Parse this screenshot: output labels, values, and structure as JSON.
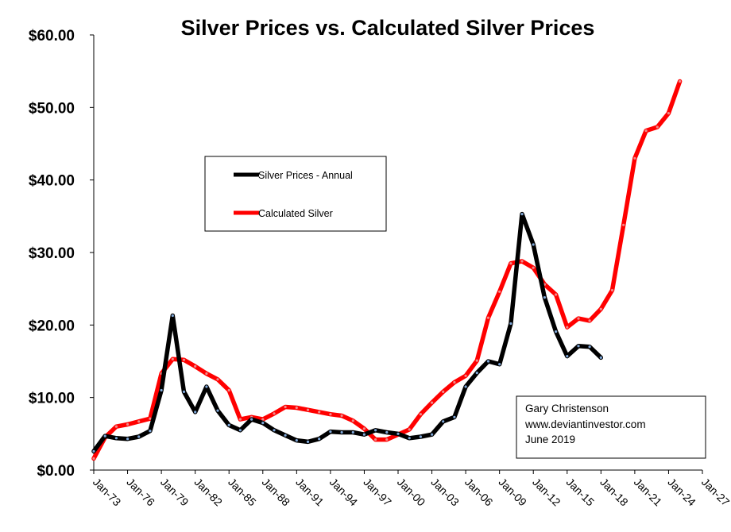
{
  "chart_data": {
    "type": "line",
    "title": "Silver Prices vs. Calculated Silver Prices",
    "xlabel": "",
    "ylabel": "",
    "ylim": [
      0,
      60
    ],
    "yticks": [
      "$0.00",
      "$10.00",
      "$20.00",
      "$30.00",
      "$40.00",
      "$50.00",
      "$60.00"
    ],
    "xlim": [
      1973,
      2027
    ],
    "xticks": [
      "Jan-73",
      "Jan-76",
      "Jan-79",
      "Jan-82",
      "Jan-85",
      "Jan-88",
      "Jan-91",
      "Jan-94",
      "Jan-97",
      "Jan-00",
      "Jan-03",
      "Jan-06",
      "Jan-09",
      "Jan-12",
      "Jan-15",
      "Jan-18",
      "Jan-21",
      "Jan-24",
      "Jan-27"
    ],
    "grid": false,
    "legend_position": "upper-left",
    "series": [
      {
        "name": "Silver Prices - Annual",
        "color": "#000000",
        "x": [
          1973,
          1974,
          1975,
          1976,
          1977,
          1978,
          1979,
          1980,
          1981,
          1982,
          1983,
          1984,
          1985,
          1986,
          1987,
          1988,
          1989,
          1990,
          1991,
          1992,
          1993,
          1994,
          1995,
          1996,
          1997,
          1998,
          1999,
          2000,
          2001,
          2002,
          2003,
          2004,
          2005,
          2006,
          2007,
          2008,
          2009,
          2010,
          2011,
          2012,
          2013,
          2014,
          2015,
          2016,
          2017,
          2018
        ],
        "values": [
          2.6,
          4.7,
          4.4,
          4.3,
          4.6,
          5.4,
          11.0,
          21.3,
          10.8,
          8.0,
          11.5,
          8.2,
          6.2,
          5.5,
          7.0,
          6.5,
          5.5,
          4.8,
          4.1,
          3.9,
          4.3,
          5.3,
          5.2,
          5.2,
          4.9,
          5.5,
          5.2,
          5.0,
          4.4,
          4.6,
          4.9,
          6.7,
          7.3,
          11.5,
          13.4,
          15.0,
          14.6,
          20.2,
          35.3,
          31.1,
          23.8,
          19.1,
          15.7,
          17.1,
          17.0,
          15.5
        ]
      },
      {
        "name": "Calculated Silver",
        "color": "#ff0000",
        "x": [
          1973,
          1974,
          1975,
          1976,
          1977,
          1978,
          1979,
          1980,
          1981,
          1982,
          1983,
          1984,
          1985,
          1986,
          1987,
          1988,
          1989,
          1990,
          1991,
          1992,
          1993,
          1994,
          1995,
          1996,
          1997,
          1998,
          1999,
          2000,
          2001,
          2002,
          2003,
          2004,
          2005,
          2006,
          2007,
          2008,
          2009,
          2010,
          2011,
          2012,
          2013,
          2014,
          2015,
          2016,
          2017,
          2018,
          2019,
          2020,
          2021,
          2022,
          2023,
          2024,
          2025
        ],
        "values": [
          1.6,
          4.5,
          6.0,
          6.3,
          6.7,
          7.1,
          13.3,
          15.3,
          15.2,
          14.3,
          13.3,
          12.5,
          11.0,
          7.0,
          7.3,
          7.0,
          7.8,
          8.7,
          8.6,
          8.3,
          8.0,
          7.7,
          7.5,
          6.8,
          5.7,
          4.2,
          4.2,
          4.9,
          5.6,
          7.7,
          9.3,
          10.8,
          12.1,
          13.0,
          15.1,
          21.0,
          24.6,
          28.5,
          28.8,
          27.9,
          25.6,
          24.2,
          19.7,
          20.9,
          20.6,
          22.2,
          24.8,
          33.8,
          43.0,
          46.8,
          47.3,
          49.2,
          53.6
        ]
      }
    ],
    "legend_labels": [
      "Silver Prices - Annual",
      "Calculated Silver"
    ]
  },
  "annotation": {
    "lines": [
      "Gary Christenson",
      "www.deviantinvestor.com",
      "June 2019"
    ]
  }
}
